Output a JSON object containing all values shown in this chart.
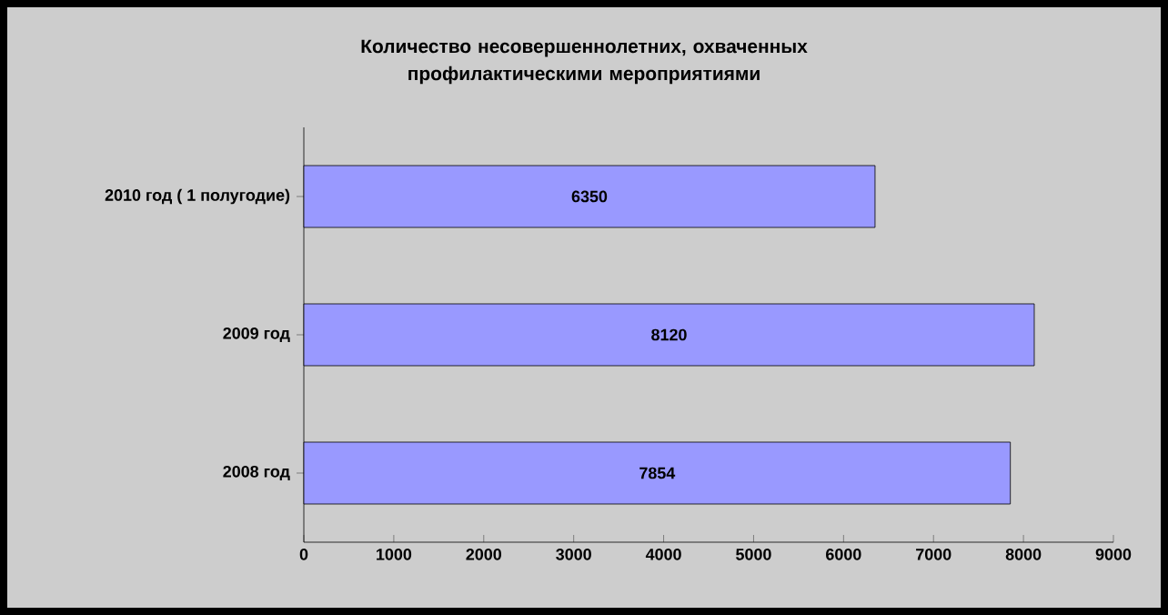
{
  "chart_data": {
    "type": "bar",
    "orientation": "horizontal",
    "title": "Количество несовершеннолетних, охваченных профилактическими мероприятиями",
    "categories": [
      "2010 год ( 1 полугодие)",
      "2009 год",
      "2008 год"
    ],
    "values": [
      6350,
      8120,
      7854
    ],
    "color": "#9999ff",
    "xlim": [
      0,
      9000
    ],
    "xticks": [
      0,
      1000,
      2000,
      3000,
      4000,
      5000,
      6000,
      7000,
      8000,
      9000
    ],
    "data_labels": true,
    "grid": false
  }
}
